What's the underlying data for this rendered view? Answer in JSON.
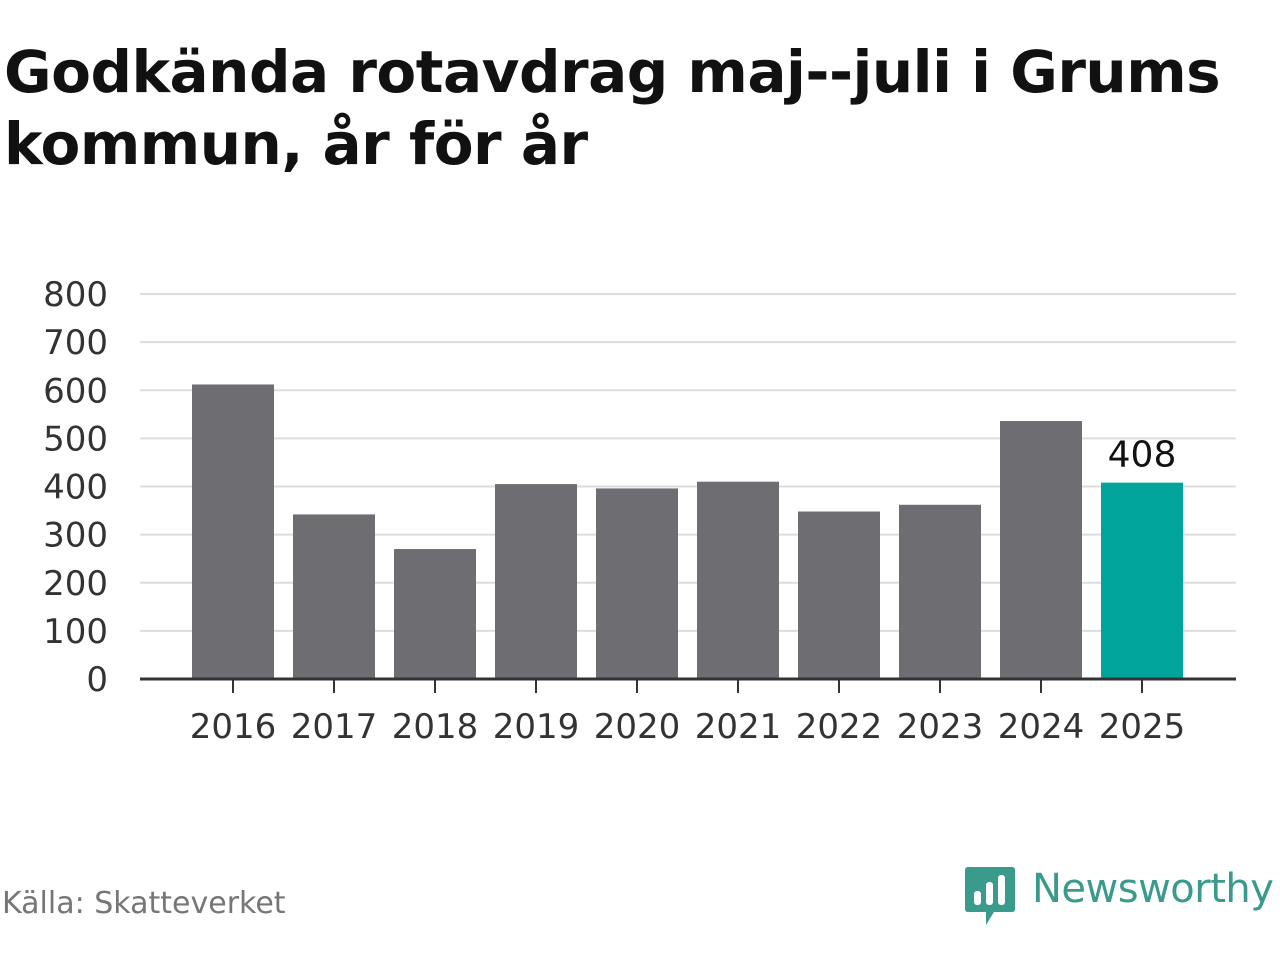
{
  "title": "Godkända rotavdrag maj--juli i Grums kommun, år för år",
  "source": "Källa: Skatteverket",
  "brand": {
    "name": "Newsworthy",
    "icon": "newsworthy-logo-icon",
    "color": "#3a9b8c"
  },
  "colors": {
    "bar": "#6e6d72",
    "highlight": "#00a49a",
    "grid": "#dddddd",
    "axis": "#333333",
    "tick_text": "#333333"
  },
  "chart_data": {
    "type": "bar",
    "title": "Godkända rotavdrag maj--juli i Grums kommun, år för år",
    "categories": [
      "2016",
      "2017",
      "2018",
      "2019",
      "2020",
      "2021",
      "2022",
      "2023",
      "2024",
      "2025"
    ],
    "values": [
      612,
      342,
      270,
      405,
      396,
      410,
      348,
      362,
      536,
      408
    ],
    "highlight_index": 9,
    "data_labels": [
      {
        "index": 9,
        "text": "408"
      }
    ],
    "ylim": [
      0,
      800
    ],
    "yticks": [
      "0",
      "100",
      "200",
      "300",
      "400",
      "500",
      "600",
      "700",
      "800"
    ],
    "ytick_values": [
      0,
      100,
      200,
      300,
      400,
      500,
      600,
      700,
      800
    ],
    "grid": true,
    "legend": false,
    "xlabel": "",
    "ylabel": ""
  }
}
